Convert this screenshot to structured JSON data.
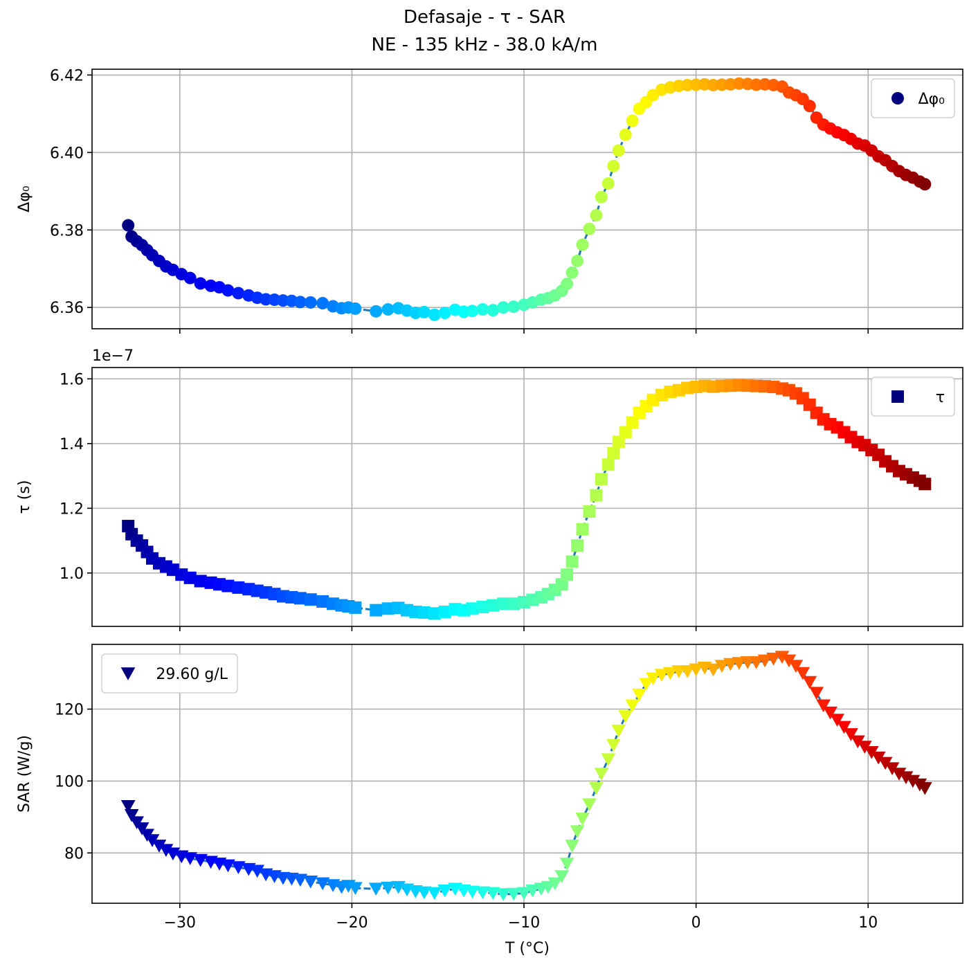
{
  "title_lines": [
    "Defasaje - τ - SAR",
    "NE - 135 kHz - 38.0 kA/m"
  ],
  "chart_data": [
    {
      "type": "scatter",
      "ylabel": "Δφ₀",
      "xlim": [
        -35.1,
        15.5
      ],
      "ylim": [
        6.3545,
        6.4215
      ],
      "yticks": [
        6.36,
        6.38,
        6.4,
        6.42
      ],
      "ytick_labels": [
        "6.36",
        "6.38",
        "6.40",
        "6.42"
      ],
      "marker": "circle",
      "legend": {
        "label": "Δφ₀",
        "placement": "top-right"
      },
      "grid": true,
      "series": [
        {
          "x": [
            -33.0,
            -32.8,
            -32.5,
            -32.2,
            -31.9,
            -31.6,
            -31.2,
            -30.8,
            -30.4,
            -29.9,
            -29.4,
            -28.8,
            -28.2,
            -27.7,
            -27.2,
            -26.6,
            -26.0,
            -25.5,
            -25.0,
            -24.5,
            -24.0,
            -23.5,
            -23.0,
            -22.4,
            -21.7,
            -21.1,
            -20.6,
            -20.2,
            -19.8,
            -18.6,
            -17.9,
            -17.3,
            -16.8,
            -16.3,
            -15.8,
            -15.2,
            -14.6,
            -14.0,
            -13.5,
            -13.0,
            -12.4,
            -11.8,
            -11.2,
            -10.6,
            -10.0,
            -9.5,
            -9.0,
            -8.6,
            -8.2,
            -7.8,
            -7.5,
            -7.2,
            -6.9,
            -6.6,
            -6.2,
            -5.8,
            -5.5,
            -5.1,
            -4.8,
            -4.5,
            -4.1,
            -3.7,
            -3.3,
            -2.9,
            -2.5,
            -2.0,
            -1.5,
            -1.0,
            -0.5,
            0.0,
            0.5,
            1.0,
            1.5,
            2.0,
            2.5,
            3.0,
            3.5,
            4.0,
            4.5,
            5.0,
            5.4,
            5.8,
            6.2,
            6.6,
            7.0,
            7.4,
            7.8,
            8.2,
            8.6,
            9.0,
            9.4,
            9.8,
            10.2,
            10.6,
            11.0,
            11.4,
            11.8,
            12.2,
            12.6,
            13.0,
            13.3
          ],
          "y": [
            6.3812,
            6.3783,
            6.3771,
            6.3761,
            6.3748,
            6.3735,
            6.372,
            6.3706,
            6.3697,
            6.3686,
            6.3676,
            6.3662,
            6.3656,
            6.3652,
            6.3644,
            6.3637,
            6.3631,
            6.3625,
            6.3621,
            6.362,
            6.3618,
            6.3617,
            6.3614,
            6.3613,
            6.3611,
            6.3603,
            6.3598,
            6.36,
            6.3597,
            6.359,
            6.3595,
            6.3598,
            6.3592,
            6.3586,
            6.3588,
            6.3581,
            6.3586,
            6.3594,
            6.3589,
            6.3591,
            6.3595,
            6.3593,
            6.36,
            6.3602,
            6.3607,
            6.3613,
            6.362,
            6.3624,
            6.3631,
            6.3643,
            6.3661,
            6.369,
            6.372,
            6.3762,
            6.3803,
            6.3838,
            6.3885,
            6.392,
            6.3965,
            6.4005,
            6.4046,
            6.4082,
            6.4113,
            6.413,
            6.4148,
            6.4162,
            6.4168,
            6.4172,
            6.4174,
            6.4175,
            6.4176,
            6.4174,
            6.4175,
            6.4176,
            6.4178,
            6.4177,
            6.4175,
            6.4176,
            6.4174,
            6.417,
            6.4155,
            6.4148,
            6.4138,
            6.412,
            6.409,
            6.4072,
            6.4062,
            6.4052,
            6.4045,
            6.4035,
            6.4023,
            6.4018,
            6.4005,
            6.399,
            6.398,
            6.3965,
            6.3952,
            6.3942,
            6.3935,
            6.3925,
            6.3918
          ]
        }
      ]
    },
    {
      "type": "scatter",
      "ylabel": "τ (s)",
      "xlim": [
        -35.1,
        15.5
      ],
      "ylim": [
        8.35e-08,
        1.635e-07
      ],
      "yticks": [
        1e-07,
        1.2e-07,
        1.4e-07,
        1.6e-07
      ],
      "ytick_labels": [
        "1.0",
        "1.2",
        "1.4",
        "1.6"
      ],
      "offset_text": "1e−7",
      "marker": "square",
      "legend": {
        "label": "τ",
        "placement": "top-right"
      },
      "grid": true,
      "series": [
        {
          "x": [
            -33.0,
            -32.8,
            -32.5,
            -32.2,
            -31.9,
            -31.6,
            -31.2,
            -30.8,
            -30.4,
            -29.9,
            -29.4,
            -28.8,
            -28.2,
            -27.7,
            -27.2,
            -26.6,
            -26.0,
            -25.5,
            -25.0,
            -24.5,
            -24.0,
            -23.5,
            -23.0,
            -22.4,
            -21.7,
            -21.1,
            -20.6,
            -20.2,
            -19.8,
            -18.6,
            -17.9,
            -17.3,
            -16.8,
            -16.3,
            -15.8,
            -15.2,
            -14.6,
            -14.0,
            -13.5,
            -13.0,
            -12.4,
            -11.8,
            -11.2,
            -10.6,
            -10.0,
            -9.5,
            -9.0,
            -8.6,
            -8.2,
            -7.8,
            -7.5,
            -7.2,
            -6.9,
            -6.6,
            -6.2,
            -5.8,
            -5.5,
            -5.1,
            -4.8,
            -4.5,
            -4.1,
            -3.7,
            -3.3,
            -2.9,
            -2.5,
            -2.0,
            -1.5,
            -1.0,
            -0.5,
            0.0,
            0.5,
            1.0,
            1.5,
            2.0,
            2.5,
            3.0,
            3.5,
            4.0,
            4.5,
            5.0,
            5.4,
            5.8,
            6.2,
            6.6,
            7.0,
            7.4,
            7.8,
            8.2,
            8.6,
            9.0,
            9.4,
            9.8,
            10.2,
            10.6,
            11.0,
            11.4,
            11.8,
            12.2,
            12.6,
            13.0,
            13.3
          ],
          "y": [
            1.145e-07,
            1.12e-07,
            1.1e-07,
            1.085e-07,
            1.065e-07,
            1.045e-07,
            1.03e-07,
            1.02e-07,
            1.01e-07,
            9.95e-08,
            9.85e-08,
            9.75e-08,
            9.7e-08,
            9.65e-08,
            9.6e-08,
            9.55e-08,
            9.5e-08,
            9.45e-08,
            9.4e-08,
            9.35e-08,
            9.28e-08,
            9.25e-08,
            9.22e-08,
            9.18e-08,
            9.12e-08,
            9.05e-08,
            9e-08,
            8.97e-08,
            8.93e-08,
            8.85e-08,
            8.9e-08,
            8.92e-08,
            8.85e-08,
            8.8e-08,
            8.78e-08,
            8.75e-08,
            8.8e-08,
            8.88e-08,
            8.85e-08,
            8.9e-08,
            8.95e-08,
            9e-08,
            9.05e-08,
            9.05e-08,
            9.1e-08,
            9.17e-08,
            9.25e-08,
            9.35e-08,
            9.48e-08,
            9.65e-08,
            9.95e-08,
            1.035e-07,
            1.085e-07,
            1.135e-07,
            1.19e-07,
            1.24e-07,
            1.29e-07,
            1.335e-07,
            1.37e-07,
            1.405e-07,
            1.435e-07,
            1.465e-07,
            1.495e-07,
            1.515e-07,
            1.535e-07,
            1.55e-07,
            1.56e-07,
            1.565e-07,
            1.572e-07,
            1.575e-07,
            1.578e-07,
            1.576e-07,
            1.578e-07,
            1.579e-07,
            1.58e-07,
            1.579e-07,
            1.578e-07,
            1.577e-07,
            1.575e-07,
            1.57e-07,
            1.565e-07,
            1.555e-07,
            1.54e-07,
            1.52e-07,
            1.495e-07,
            1.475e-07,
            1.46e-07,
            1.45e-07,
            1.435e-07,
            1.42e-07,
            1.405e-07,
            1.395e-07,
            1.38e-07,
            1.365e-07,
            1.345e-07,
            1.33e-07,
            1.315e-07,
            1.305e-07,
            1.295e-07,
            1.285e-07,
            1.275e-07
          ]
        }
      ]
    },
    {
      "type": "scatter",
      "ylabel": "SAR (W/g)",
      "xlabel": "T (°C)",
      "xlim": [
        -35.1,
        15.5
      ],
      "ylim": [
        66.0,
        138.0
      ],
      "yticks": [
        80,
        100,
        120
      ],
      "ytick_labels": [
        "80",
        "100",
        "120"
      ],
      "xticks": [
        -30,
        -20,
        -10,
        0,
        10
      ],
      "xtick_labels": [
        "−30",
        "−20",
        "−10",
        "0",
        "10"
      ],
      "marker": "triangle-down",
      "legend": {
        "label": "29.60 g/L",
        "placement": "top-left"
      },
      "grid": true,
      "series": [
        {
          "x": [
            -33.0,
            -32.8,
            -32.5,
            -32.2,
            -31.9,
            -31.6,
            -31.2,
            -30.8,
            -30.4,
            -29.9,
            -29.4,
            -28.8,
            -28.2,
            -27.7,
            -27.2,
            -26.6,
            -26.0,
            -25.5,
            -25.0,
            -24.5,
            -24.0,
            -23.5,
            -23.0,
            -22.4,
            -21.7,
            -21.1,
            -20.6,
            -20.2,
            -19.8,
            -18.6,
            -17.9,
            -17.3,
            -16.8,
            -16.3,
            -15.8,
            -15.2,
            -14.6,
            -14.0,
            -13.5,
            -13.0,
            -12.4,
            -11.8,
            -11.2,
            -10.6,
            -10.0,
            -9.5,
            -9.0,
            -8.6,
            -8.2,
            -7.8,
            -7.5,
            -7.2,
            -6.9,
            -6.6,
            -6.2,
            -5.8,
            -5.5,
            -5.1,
            -4.8,
            -4.5,
            -4.1,
            -3.7,
            -3.3,
            -2.9,
            -2.5,
            -2.0,
            -1.5,
            -1.0,
            -0.5,
            0.0,
            0.5,
            1.0,
            1.5,
            2.0,
            2.5,
            3.0,
            3.5,
            4.0,
            4.5,
            5.0,
            5.4,
            5.8,
            6.2,
            6.6,
            7.0,
            7.4,
            7.8,
            8.2,
            8.6,
            9.0,
            9.4,
            9.8,
            10.2,
            10.6,
            11.0,
            11.4,
            11.8,
            12.2,
            12.6,
            13.0,
            13.3
          ],
          "y": [
            93.0,
            90.5,
            88.5,
            86.8,
            85.0,
            83.5,
            82.0,
            80.8,
            79.8,
            79.0,
            78.5,
            78.0,
            77.5,
            77.0,
            76.5,
            76.0,
            75.5,
            75.0,
            74.0,
            73.5,
            73.0,
            72.8,
            72.5,
            72.0,
            71.5,
            71.0,
            70.5,
            70.8,
            70.2,
            70.0,
            70.3,
            70.5,
            69.8,
            69.3,
            69.0,
            68.8,
            69.5,
            70.0,
            69.5,
            69.2,
            69.0,
            68.8,
            68.5,
            68.6,
            68.8,
            69.5,
            70.0,
            70.5,
            71.5,
            73.5,
            77.0,
            82.0,
            86.0,
            89.5,
            93.5,
            98.0,
            102.0,
            106.0,
            110.0,
            114.0,
            118.0,
            121.0,
            124.0,
            127.0,
            128.5,
            129.5,
            130.0,
            130.5,
            130.5,
            131.0,
            131.5,
            131.0,
            132.0,
            132.5,
            132.8,
            133.0,
            133.0,
            133.5,
            134.0,
            134.5,
            133.5,
            132.0,
            130.0,
            127.5,
            124.5,
            121.0,
            119.0,
            117.0,
            115.0,
            113.0,
            111.0,
            109.5,
            108.0,
            106.5,
            105.0,
            103.5,
            102.0,
            101.0,
            100.0,
            99.0,
            98.0
          ]
        }
      ]
    }
  ]
}
